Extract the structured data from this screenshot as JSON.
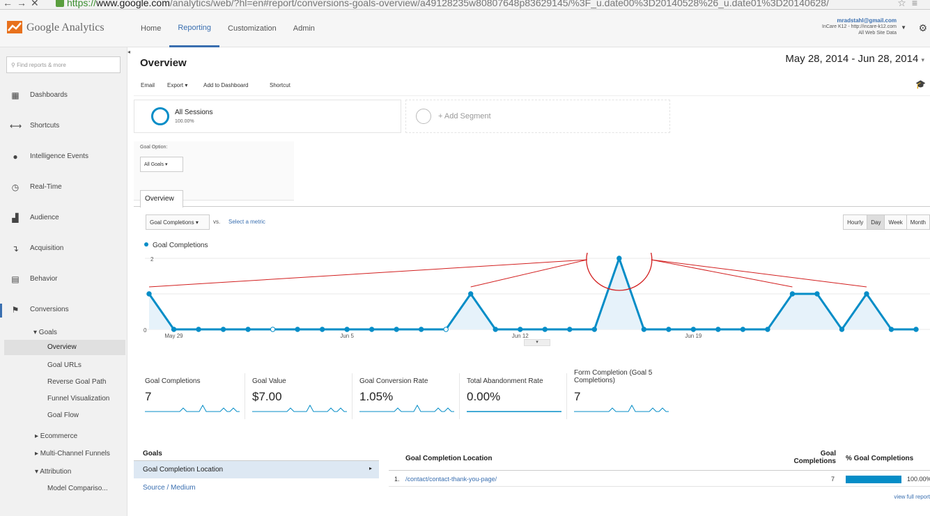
{
  "browser": {
    "url_scheme": "https://",
    "url_host": "www.google.com",
    "url_path": "/analytics/web/?hl=en#report/conversions-goals-overview/a49128235w80807648p83629145/%3F_u.date00%3D20140528%26_u.date01%3D20140628/",
    "back_icon": "arrow-left-icon",
    "forward_icon": "arrow-right-icon",
    "stop_icon": "close-icon"
  },
  "header": {
    "brand_google": "Google",
    "brand_analytics": "Analytics",
    "nav": [
      {
        "label": "Home"
      },
      {
        "label": "Reporting"
      },
      {
        "label": "Customization"
      },
      {
        "label": "Admin"
      }
    ],
    "account_email": "mradstahl@gmail.com",
    "account_property": "InCare K12 - http://incare-k12.com",
    "account_view": "All Web Site Data"
  },
  "sidebar": {
    "search_placeholder": "Find reports & more",
    "items": [
      {
        "label": "Dashboards",
        "icon": "grid-icon"
      },
      {
        "label": "Shortcuts",
        "icon": "shortcut-arrows-icon"
      },
      {
        "label": "Intelligence Events",
        "icon": "lightbulb-icon"
      },
      {
        "label": "Real-Time",
        "icon": "clock-icon"
      },
      {
        "label": "Audience",
        "icon": "people-icon"
      },
      {
        "label": "Acquisition",
        "icon": "acquisition-arrows-icon"
      },
      {
        "label": "Behavior",
        "icon": "page-icon"
      },
      {
        "label": "Conversions",
        "icon": "flag-icon"
      }
    ],
    "sub": {
      "goals": "▾ Goals",
      "overview": "Overview",
      "goal_urls": "Goal URLs",
      "reverse_goal_path": "Reverse Goal Path",
      "funnel_visualization": "Funnel Visualization",
      "goal_flow": "Goal Flow",
      "ecommerce": "▸ Ecommerce",
      "multi_channel": "▸ Multi-Channel Funnels",
      "attribution": "▾ Attribution",
      "model_comparison": "Model Compariso..."
    }
  },
  "main": {
    "title": "Overview",
    "date_range": "May 28, 2014 - Jun 28, 2014",
    "toolbar": {
      "email": "Email",
      "export": "Export ▾",
      "add_dashboard": "Add to Dashboard",
      "shortcut": "Shortcut"
    },
    "segments": {
      "all_sessions": "All Sessions",
      "all_pct": "100.00%",
      "add_segment": "+ Add Segment"
    },
    "goal_option_label": "Goal Option:",
    "goal_option_value": "All Goals",
    "tab_overview": "Overview",
    "metric_select": "Goal Completions",
    "vs": "vs.",
    "select_metric": "Select a metric",
    "granularity": [
      "Hourly",
      "Day",
      "Week",
      "Month"
    ],
    "legend_label": "Goal Completions"
  },
  "chart_data": {
    "type": "line",
    "series": [
      {
        "name": "Goal Completions",
        "values": [
          1,
          0,
          0,
          0,
          0,
          0,
          0,
          0,
          0,
          0,
          0,
          0,
          0,
          1,
          0,
          0,
          0,
          0,
          0,
          2,
          0,
          0,
          0,
          0,
          0,
          0,
          1,
          1,
          0,
          1,
          0,
          0
        ]
      }
    ],
    "x_tick_labels": [
      "May 29",
      "Jun 5",
      "Jun 12",
      "Jun 19"
    ],
    "y_tick_labels": [
      "2",
      "0"
    ],
    "ylim": [
      0,
      2
    ],
    "color": "#058dc7"
  },
  "tiles": [
    {
      "name": "Goal Completions",
      "value": "7"
    },
    {
      "name": "Goal Value",
      "value": "$7.00"
    },
    {
      "name": "Goal Conversion Rate",
      "value": "1.05%"
    },
    {
      "name": "Total Abandonment Rate",
      "value": "0.00%"
    },
    {
      "name": "Form Completion (Goal 5 Completions)",
      "value": "7"
    }
  ],
  "goals_panel": {
    "header": "Goals",
    "selected": "Goal Completion Location",
    "other": "Source / Medium"
  },
  "table": {
    "col_location": "Goal Completion Location",
    "col_completions": "Goal Completions",
    "col_pct": "% Goal Completions",
    "rows": [
      {
        "index": "1.",
        "location": "/contact/contact-thank-you-page/",
        "completions": "7",
        "pct": "100.00%"
      }
    ],
    "view_full": "view full report"
  }
}
